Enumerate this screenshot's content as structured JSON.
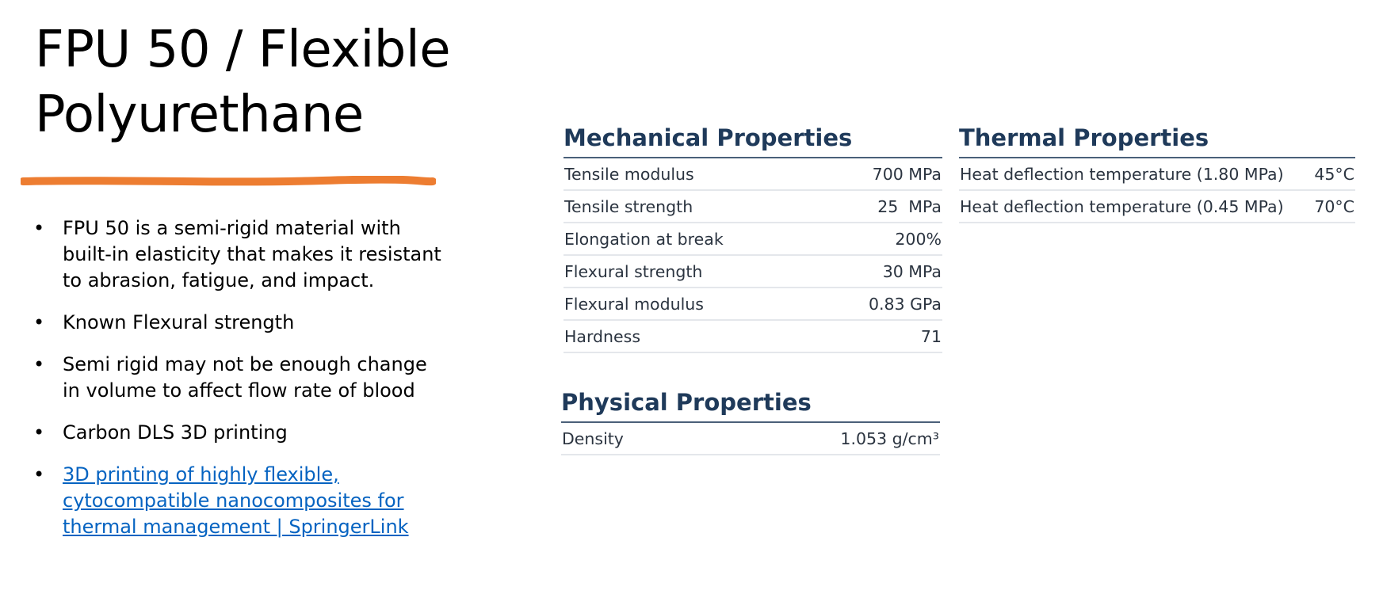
{
  "title": {
    "line1": "FPU 50 / Flexible",
    "line2": "Polyurethane"
  },
  "accent_color": "#ed7d31",
  "link_color": "#0563c1",
  "heading_color": "#1f3a5a",
  "bullets": [
    {
      "text": "FPU 50 is a semi-rigid material with built-in elasticity that makes it resistant to abrasion, fatigue, and impact."
    },
    {
      "text": "Known Flexural strength"
    },
    {
      "text": "Semi rigid may not be enough change in volume to affect flow rate of blood"
    },
    {
      "text": "Carbon DLS 3D printing"
    },
    {
      "text": "3D printing of highly flexible, cytocompatible nanocomposites for thermal management | SpringerLink"
    }
  ],
  "mechanical": {
    "heading": "Mechanical Properties",
    "rows": [
      {
        "label": "Tensile modulus",
        "value": "700 MPa"
      },
      {
        "label": "Tensile strength",
        "value": "25  MPa"
      },
      {
        "label": "Elongation at break",
        "value": "200%"
      },
      {
        "label": "Flexural strength",
        "value": "30 MPa"
      },
      {
        "label": "Flexural modulus",
        "value": "0.83 GPa"
      },
      {
        "label": "Hardness",
        "value": "71"
      }
    ]
  },
  "thermal": {
    "heading": "Thermal Properties",
    "rows": [
      {
        "label": "Heat deflection temperature (1.80 MPa)",
        "value": "45°C"
      },
      {
        "label": "Heat deflection temperature (0.45 MPa)",
        "value": "70°C"
      }
    ]
  },
  "physical": {
    "heading": "Physical Properties",
    "rows": [
      {
        "label": "Density",
        "value": "1.053 g/cm³"
      }
    ]
  }
}
